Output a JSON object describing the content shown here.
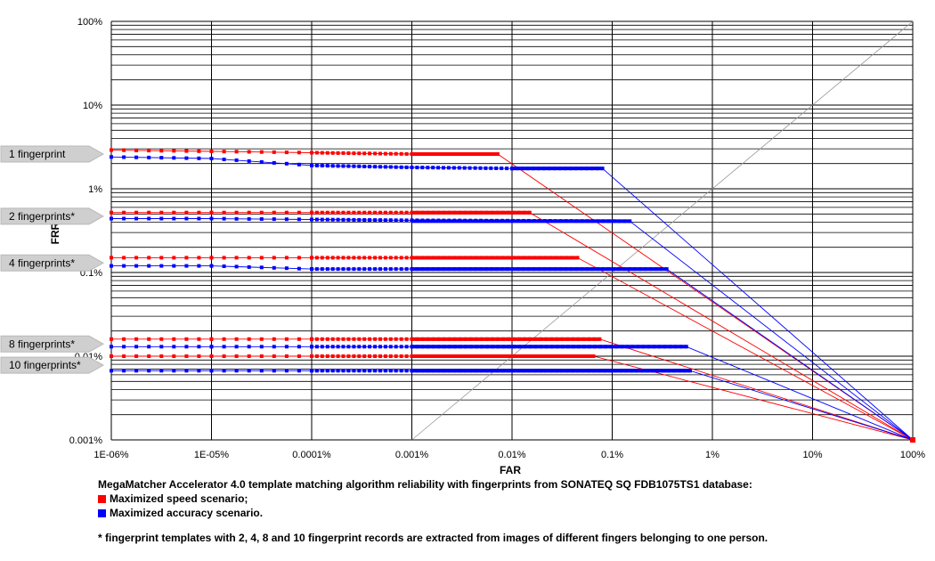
{
  "chart_data": {
    "type": "line",
    "title": "",
    "xlabel": "FAR",
    "ylabel": "FRR",
    "x_scale": "log",
    "y_scale": "log",
    "xlim": [
      "1E-06%",
      "100%"
    ],
    "ylim": [
      "0.001%",
      "100%"
    ],
    "x_tick_labels": [
      "1E-06%",
      "1E-05%",
      "0.0001%",
      "0.001%",
      "0.01%",
      "0.1%",
      "1%",
      "10%",
      "100%"
    ],
    "y_tick_labels": [
      "0.001%",
      "0.01%",
      "0.1%",
      "1%",
      "10%",
      "100%"
    ],
    "grid": true,
    "colors": {
      "speed": "#ff0000",
      "accuracy": "#0000ff",
      "diagonal": "#999999"
    },
    "callouts": [
      "1 fingerprint",
      "2 fingerprints*",
      "4 fingerprints*",
      "8 fingerprints*",
      "10 fingerprints*"
    ],
    "series": [
      {
        "name": "Maximized speed scenario;",
        "group": "1 fingerprint",
        "x": [
          "1E-06%",
          "1E-05%",
          "0.0001%",
          "0.001%",
          "0.0072%",
          "100%"
        ],
        "y": [
          "2.9%",
          "2.8%",
          "2.7%",
          "2.6%",
          "2.6%",
          "0.001%"
        ]
      },
      {
        "name": "Maximized accuracy scenario.",
        "group": "1 fingerprint",
        "x": [
          "1E-06%",
          "1E-05%",
          "0.0001%",
          "0.001%",
          "0.01%",
          "0.08%",
          "100%"
        ],
        "y": [
          "2.4%",
          "2.3%",
          "1.9%",
          "1.8%",
          "1.75%",
          "1.75%",
          "0.001%"
        ]
      },
      {
        "name": "Maximized speed scenario;",
        "group": "2 fingerprints*",
        "x": [
          "1E-06%",
          "1E-05%",
          "0.0001%",
          "0.001%",
          "0.015%",
          "100%"
        ],
        "y": [
          "0.52%",
          "0.52%",
          "0.52%",
          "0.52%",
          "0.52%",
          "0.001%"
        ]
      },
      {
        "name": "Maximized accuracy scenario.",
        "group": "2 fingerprints*",
        "x": [
          "1E-06%",
          "1E-05%",
          "0.0001%",
          "0.001%",
          "0.15%",
          "100%"
        ],
        "y": [
          "0.44%",
          "0.44%",
          "0.43%",
          "0.42%",
          "0.41%",
          "0.001%"
        ]
      },
      {
        "name": "Maximized speed scenario;",
        "group": "4 fingerprints*",
        "x": [
          "1E-06%",
          "1E-05%",
          "0.0001%",
          "0.001%",
          "0.045%",
          "100%"
        ],
        "y": [
          "0.15%",
          "0.15%",
          "0.15%",
          "0.15%",
          "0.15%",
          "0.001%"
        ]
      },
      {
        "name": "Maximized accuracy scenario.",
        "group": "4 fingerprints*",
        "x": [
          "1E-06%",
          "1E-05%",
          "0.0001%",
          "0.001%",
          "0.35%",
          "100%"
        ],
        "y": [
          "0.12%",
          "0.12%",
          "0.11%",
          "0.11%",
          "0.11%",
          "0.001%"
        ]
      },
      {
        "name": "Maximized speed scenario;",
        "group": "8 fingerprints*",
        "x": [
          "1E-06%",
          "1E-05%",
          "0.0001%",
          "0.001%",
          "0.075%",
          "100%"
        ],
        "y": [
          "0.016%",
          "0.016%",
          "0.016%",
          "0.016%",
          "0.016%",
          "0.001%"
        ]
      },
      {
        "name": "Maximized accuracy scenario.",
        "group": "8 fingerprints*",
        "x": [
          "1E-06%",
          "1E-05%",
          "0.0001%",
          "0.001%",
          "0.55%",
          "100%"
        ],
        "y": [
          "0.013%",
          "0.013%",
          "0.013%",
          "0.013%",
          "0.013%",
          "0.001%"
        ]
      },
      {
        "name": "Maximized speed scenario;",
        "group": "10 fingerprints*",
        "x": [
          "1E-06%",
          "1E-05%",
          "0.0001%",
          "0.001%",
          "0.065%",
          "100%"
        ],
        "y": [
          "0.01%",
          "0.01%",
          "0.01%",
          "0.01%",
          "0.01%",
          "0.001%"
        ]
      },
      {
        "name": "Maximized accuracy scenario.",
        "group": "10 fingerprints*",
        "x": [
          "1E-06%",
          "1E-05%",
          "0.0001%",
          "0.001%",
          "0.6%",
          "100%"
        ],
        "y": [
          "0.0067%",
          "0.0067%",
          "0.0067%",
          "0.0067%",
          "0.0067%",
          "0.001%"
        ]
      }
    ]
  },
  "caption": {
    "title": "MegaMatcher Accelerator 4.0 template matching algorithm reliability with fingerprints from SONATEQ SQ FDB1075TS1 database:",
    "legend": [
      {
        "label": "Maximized speed scenario;",
        "color": "#ff0000"
      },
      {
        "label": "Maximized accuracy scenario.",
        "color": "#0000ff"
      }
    ],
    "footnote": "* fingerprint  templates with 2, 4, 8 and 10 fingerprint records are extracted from images of different fingers belonging to one person."
  }
}
